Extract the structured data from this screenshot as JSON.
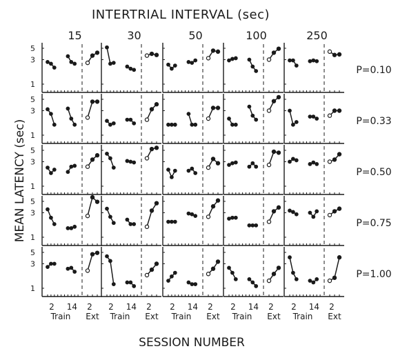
{
  "figure": {
    "title": "INTERTRIAL INTERVAL (sec)",
    "ylabel": "MEAN LATENCY (sec)",
    "xlabel": "SESSION NUMBER"
  },
  "chart_data": {
    "type": "line",
    "title": "INTERTRIAL INTERVAL (sec)",
    "xlabel": "SESSION NUMBER",
    "ylabel": "MEAN LATENCY (sec)",
    "y_scale": "log",
    "ylim": [
      1,
      5
    ],
    "y_ticks": [
      "5",
      "3",
      "1"
    ],
    "x_ticks": [
      "2",
      "14",
      "2"
    ],
    "x_groups": [
      "Train",
      "Ext"
    ],
    "columns": [
      "15",
      "30",
      "50",
      "100",
      "250"
    ],
    "rows": [
      "P=0.10",
      "P=0.33",
      "P=0.50",
      "P=0.75",
      "P=1.00"
    ],
    "markers": {
      "train": "filled circle",
      "ext": "open circle (filled where both phases overlap)"
    },
    "panels": [
      [
        {
          "train": [
            [
              1,
              2.7
            ],
            [
              2,
              2.5
            ],
            [
              3,
              2.1
            ],
            [
              8,
              3.5
            ],
            [
              9,
              2.7
            ],
            [
              10,
              2.5
            ]
          ],
          "ext": [
            [
              1,
              2.6
            ],
            [
              2,
              3.6
            ],
            [
              3,
              4.1
            ]
          ]
        },
        {
          "train": [
            [
              1,
              5.2
            ],
            [
              2,
              2.5
            ],
            [
              3,
              2.6
            ],
            [
              8,
              2.2
            ],
            [
              9,
              2.0
            ],
            [
              10,
              1.9
            ]
          ],
          "ext": [
            [
              1,
              3.6
            ],
            [
              2,
              3.9
            ],
            [
              3,
              3.7
            ]
          ]
        },
        {
          "train": [
            [
              1,
              2.4
            ],
            [
              2,
              2.0
            ],
            [
              3,
              2.3
            ],
            [
              8,
              2.7
            ],
            [
              9,
              2.6
            ],
            [
              10,
              2.9
            ]
          ],
          "ext": [
            [
              1,
              3.2
            ],
            [
              2,
              4.5
            ],
            [
              3,
              4.3
            ]
          ]
        },
        {
          "train": [
            [
              1,
              2.9
            ],
            [
              2,
              3.1
            ],
            [
              3,
              3.2
            ],
            [
              8,
              3.0
            ],
            [
              9,
              2.2
            ],
            [
              10,
              1.8
            ]
          ],
          "ext": [
            [
              1,
              3.0
            ],
            [
              2,
              4.1
            ],
            [
              3,
              4.9
            ]
          ]
        },
        {
          "train": [
            [
              1,
              2.9
            ],
            [
              2,
              2.9
            ],
            [
              3,
              2.3
            ],
            [
              8,
              2.8
            ],
            [
              9,
              2.9
            ],
            [
              10,
              2.8
            ]
          ],
          "ext": [
            [
              1,
              4.3
            ],
            [
              2,
              3.7
            ],
            [
              3,
              3.8
            ]
          ]
        }
      ],
      [
        {
          "train": [
            [
              1,
              3.2
            ],
            [
              2,
              2.6
            ],
            [
              3,
              1.6
            ],
            [
              8,
              3.3
            ],
            [
              9,
              2.1
            ],
            [
              10,
              1.6
            ]
          ],
          "ext": [
            [
              1,
              2.2
            ],
            [
              2,
              4.5
            ],
            [
              3,
              4.5
            ]
          ]
        },
        {
          "train": [
            [
              1,
              1.9
            ],
            [
              2,
              1.6
            ],
            [
              3,
              1.7
            ],
            [
              8,
              2.0
            ],
            [
              9,
              2.0
            ],
            [
              10,
              1.7
            ]
          ],
          "ext": [
            [
              1,
              2.0
            ],
            [
              2,
              3.2
            ],
            [
              3,
              4.0
            ]
          ]
        },
        {
          "train": [
            [
              1,
              1.6
            ],
            [
              2,
              1.6
            ],
            [
              3,
              1.6
            ],
            [
              8,
              2.6
            ],
            [
              9,
              1.6
            ],
            [
              10,
              1.6
            ]
          ],
          "ext": [
            [
              1,
              2.1
            ],
            [
              2,
              3.4
            ],
            [
              3,
              3.4
            ]
          ]
        },
        {
          "train": [
            [
              1,
              2.1
            ],
            [
              2,
              1.6
            ],
            [
              3,
              1.6
            ],
            [
              8,
              3.6
            ],
            [
              9,
              2.4
            ],
            [
              10,
              2.0
            ]
          ],
          "ext": [
            [
              1,
              3.0
            ],
            [
              2,
              4.6
            ],
            [
              3,
              5.5
            ]
          ]
        },
        {
          "train": [
            [
              1,
              3.0
            ],
            [
              2,
              1.6
            ],
            [
              3,
              1.8
            ],
            [
              8,
              2.3
            ],
            [
              9,
              2.3
            ],
            [
              10,
              2.1
            ]
          ],
          "ext": [
            [
              1,
              2.4
            ],
            [
              2,
              3.0
            ],
            [
              3,
              3.0
            ]
          ]
        }
      ],
      [
        {
          "train": [
            [
              1,
              2.3
            ],
            [
              2,
              1.8
            ],
            [
              3,
              2.1
            ],
            [
              8,
              1.9
            ],
            [
              9,
              2.4
            ],
            [
              10,
              2.5
            ]
          ],
          "ext": [
            [
              1,
              2.4
            ],
            [
              2,
              3.3
            ],
            [
              3,
              4.0
            ]
          ]
        },
        {
          "train": [
            [
              1,
              4.3
            ],
            [
              2,
              3.5
            ],
            [
              3,
              2.3
            ],
            [
              8,
              3.1
            ],
            [
              9,
              3.0
            ],
            [
              10,
              2.9
            ]
          ],
          "ext": [
            [
              1,
              3.5
            ],
            [
              2,
              5.3
            ],
            [
              3,
              5.6
            ]
          ]
        },
        {
          "train": [
            [
              1,
              2.1
            ],
            [
              2,
              1.5
            ],
            [
              3,
              2.0
            ],
            [
              8,
              2.0
            ],
            [
              9,
              2.2
            ],
            [
              10,
              1.8
            ]
          ],
          "ext": [
            [
              1,
              2.3
            ],
            [
              2,
              3.4
            ],
            [
              3,
              2.8
            ]
          ]
        },
        {
          "train": [
            [
              1,
              2.6
            ],
            [
              2,
              2.8
            ],
            [
              3,
              2.9
            ],
            [
              8,
              2.4
            ],
            [
              9,
              2.8
            ],
            [
              10,
              2.4
            ]
          ],
          "ext": [
            [
              1,
              2.6
            ],
            [
              2,
              4.7
            ],
            [
              3,
              4.5
            ]
          ]
        },
        {
          "train": [
            [
              1,
              3.0
            ],
            [
              2,
              3.4
            ],
            [
              3,
              3.2
            ],
            [
              8,
              2.7
            ],
            [
              9,
              2.9
            ],
            [
              10,
              2.7
            ]
          ],
          "ext": [
            [
              1,
              3.0
            ],
            [
              2,
              3.3
            ],
            [
              3,
              4.2
            ]
          ]
        }
      ],
      [
        {
          "train": [
            [
              1,
              3.5
            ],
            [
              2,
              2.4
            ],
            [
              3,
              1.8
            ],
            [
              8,
              1.5
            ],
            [
              9,
              1.5
            ],
            [
              10,
              1.6
            ]
          ],
          "ext": [
            [
              1,
              2.6
            ],
            [
              2,
              6.0
            ],
            [
              3,
              4.9
            ]
          ]
        },
        {
          "train": [
            [
              1,
              3.6
            ],
            [
              2,
              2.5
            ],
            [
              3,
              1.9
            ],
            [
              8,
              2.2
            ],
            [
              9,
              1.8
            ],
            [
              10,
              1.8
            ]
          ],
          "ext": [
            [
              1,
              1.6
            ],
            [
              2,
              3.3
            ],
            [
              3,
              4.6
            ]
          ]
        },
        {
          "train": [
            [
              1,
              2.0
            ],
            [
              2,
              2.0
            ],
            [
              3,
              2.0
            ],
            [
              8,
              2.9
            ],
            [
              9,
              2.8
            ],
            [
              10,
              2.6
            ]
          ],
          "ext": [
            [
              1,
              2.5
            ],
            [
              2,
              4.0
            ],
            [
              3,
              5.2
            ]
          ]
        },
        {
          "train": [
            [
              1,
              2.3
            ],
            [
              2,
              2.4
            ],
            [
              3,
              2.4
            ],
            [
              8,
              1.7
            ],
            [
              9,
              1.7
            ],
            [
              10,
              1.7
            ]
          ],
          "ext": [
            [
              1,
              2.0
            ],
            [
              2,
              3.2
            ],
            [
              3,
              3.8
            ]
          ]
        },
        {
          "train": [
            [
              1,
              3.3
            ],
            [
              2,
              3.1
            ],
            [
              3,
              2.8
            ],
            [
              8,
              3.0
            ],
            [
              9,
              2.5
            ],
            [
              10,
              3.2
            ]
          ],
          "ext": [
            [
              1,
              2.7
            ],
            [
              2,
              3.2
            ],
            [
              3,
              3.6
            ]
          ]
        }
      ],
      [
        {
          "train": [
            [
              1,
              2.6
            ],
            [
              2,
              3.0
            ],
            [
              3,
              3.0
            ],
            [
              8,
              2.4
            ],
            [
              9,
              2.5
            ],
            [
              10,
              2.1
            ]
          ],
          "ext": [
            [
              1,
              2.2
            ],
            [
              2,
              4.6
            ],
            [
              3,
              4.9
            ]
          ]
        },
        {
          "train": [
            [
              1,
              4.2
            ],
            [
              2,
              3.4
            ],
            [
              3,
              1.2
            ],
            [
              8,
              1.3
            ],
            [
              9,
              1.3
            ],
            [
              10,
              1.1
            ]
          ],
          "ext": [
            [
              1,
              1.8
            ],
            [
              2,
              2.3
            ],
            [
              3,
              3.0
            ]
          ]
        },
        {
          "train": [
            [
              1,
              1.4
            ],
            [
              2,
              1.7
            ],
            [
              3,
              2.0
            ],
            [
              8,
              1.3
            ],
            [
              9,
              1.2
            ],
            [
              10,
              1.2
            ]
          ],
          "ext": [
            [
              1,
              1.9
            ],
            [
              2,
              2.4
            ],
            [
              3,
              3.3
            ]
          ]
        },
        {
          "train": [
            [
              1,
              2.5
            ],
            [
              2,
              2.0
            ],
            [
              3,
              1.5
            ],
            [
              8,
              1.5
            ],
            [
              9,
              1.3
            ],
            [
              10,
              1.1
            ]
          ],
          "ext": [
            [
              1,
              1.4
            ],
            [
              2,
              1.9
            ],
            [
              3,
              2.5
            ]
          ]
        },
        {
          "train": [
            [
              1,
              4.0
            ],
            [
              2,
              2.0
            ],
            [
              3,
              1.5
            ],
            [
              8,
              1.4
            ],
            [
              9,
              1.3
            ],
            [
              10,
              1.5
            ]
          ],
          "ext": [
            [
              1,
              1.4
            ],
            [
              2,
              1.6
            ],
            [
              3,
              4.0
            ]
          ]
        }
      ]
    ]
  }
}
